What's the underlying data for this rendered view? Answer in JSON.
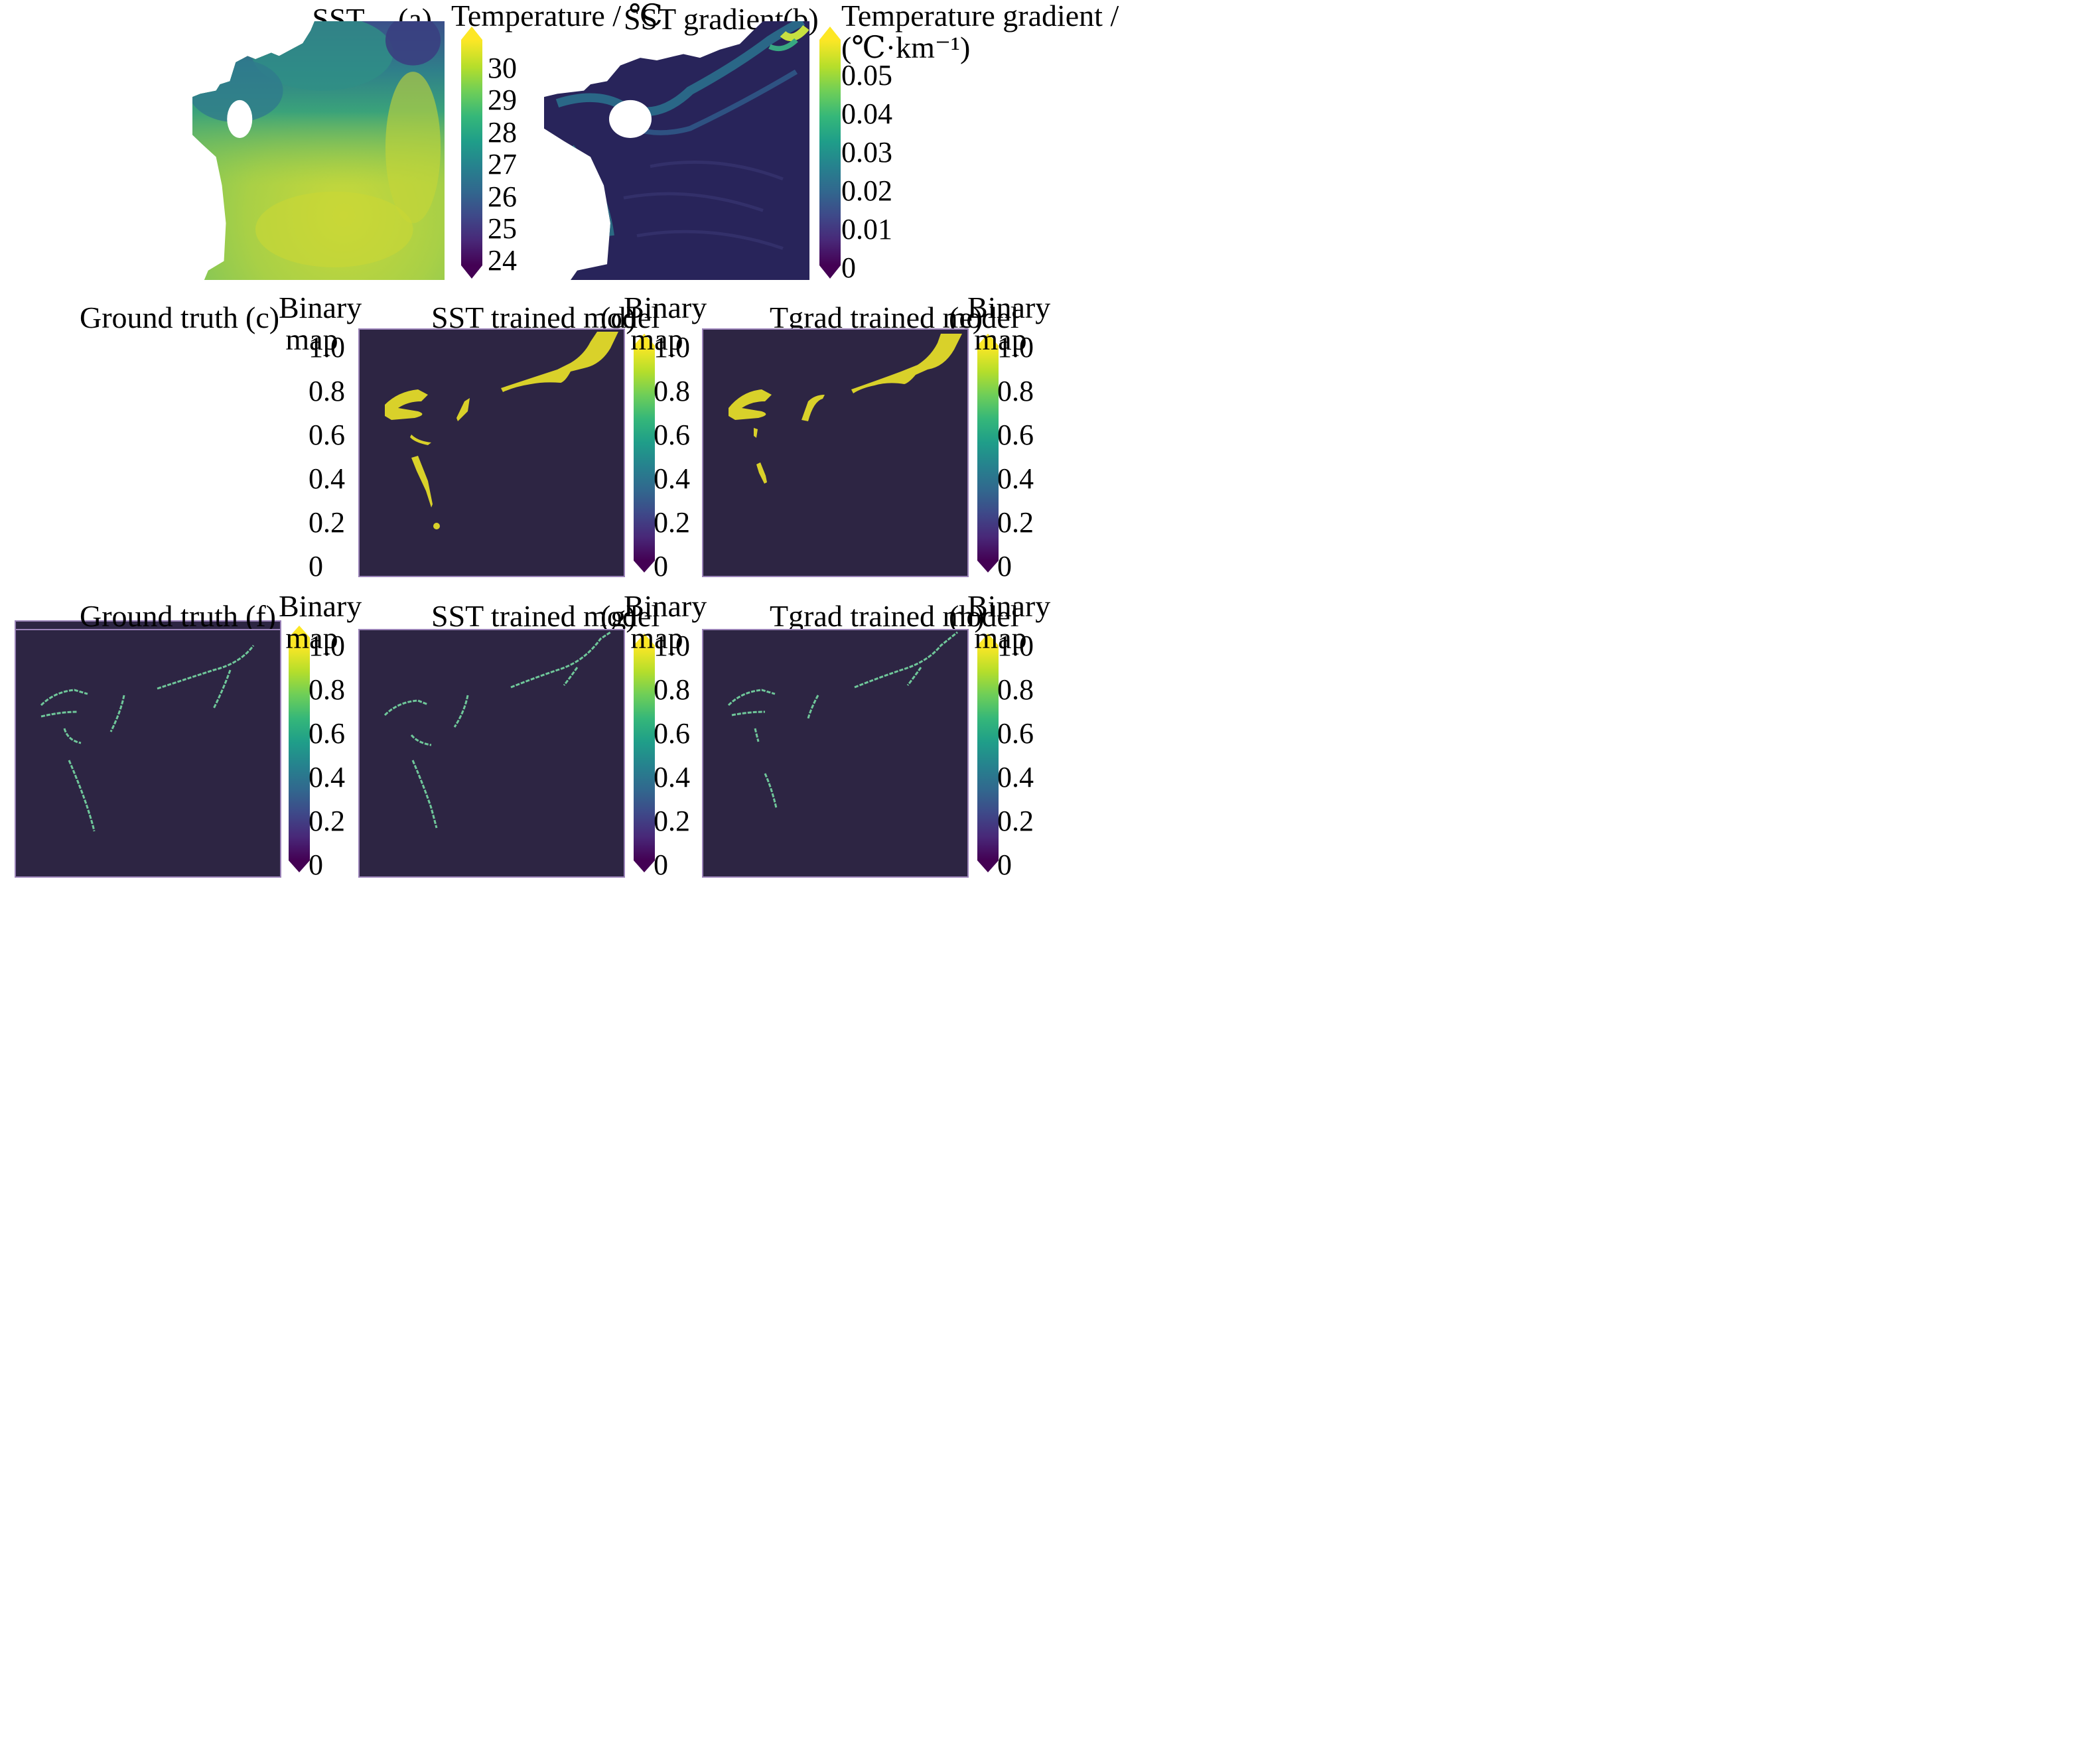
{
  "gradients": {
    "viridis": [
      "#440154",
      "#482878",
      "#3e4989",
      "#31688e",
      "#26828e",
      "#1f9e89",
      "#35b779",
      "#6ece58",
      "#b5de2b",
      "#fde725"
    ]
  },
  "colors": {
    "background": "#2d2543",
    "frame": "#9a82b8",
    "front": "#d9d12a",
    "line": "#6fc79a",
    "sst_cool": "#3b4f8a",
    "sst_mid": "#3aa27a",
    "sst_warm": "#b9d43c",
    "grad_low": "#28245a",
    "grad_high": "#c7e040"
  },
  "panels": {
    "a": {
      "title": "SST",
      "tag": "(a)",
      "colorbar_label": [
        "Temperature / ℃"
      ],
      "ticks": [
        "30",
        "29",
        "28",
        "27",
        "26",
        "25",
        "24"
      ]
    },
    "b": {
      "title": "SST gradient",
      "tag": "(b)",
      "colorbar_label": [
        "Temperature gradient /",
        "(℃·km⁻¹)"
      ],
      "ticks": [
        "0.05",
        "0.04",
        "0.03",
        "0.02",
        "0.01",
        "0"
      ]
    },
    "c": {
      "title": "Ground truth",
      "tag": "(c)",
      "colorbar_label": [
        "Binary",
        "map"
      ],
      "ticks": [
        "1.0",
        "0.8",
        "0.6",
        "0.4",
        "0.2",
        "0"
      ]
    },
    "d": {
      "title": "SST trained model",
      "tag": "(d)",
      "colorbar_label": [
        "Binary",
        "map"
      ],
      "ticks": [
        "1.0",
        "0.8",
        "0.6",
        "0.4",
        "0.2",
        "0"
      ]
    },
    "e": {
      "title": "Tgrad trained model",
      "tag": "(e)",
      "colorbar_label": [
        "Binary",
        "map"
      ],
      "ticks": [
        "1.0",
        "0.8",
        "0.6",
        "0.4",
        "0.2",
        "0"
      ]
    },
    "f": {
      "title": "Ground truth",
      "tag": "(f)",
      "colorbar_label": [
        "Binary",
        "map"
      ],
      "ticks": [
        "1.0",
        "0.8",
        "0.6",
        "0.4",
        "0.2",
        "0"
      ]
    },
    "g": {
      "title": "SST trained model",
      "tag": "(g)",
      "colorbar_label": [
        "Binary",
        "map"
      ],
      "ticks": [
        "1.0",
        "0.8",
        "0.6",
        "0.4",
        "0.2",
        "0"
      ]
    },
    "h": {
      "title": "Tgrad trained model",
      "tag": "(h)",
      "colorbar_label": [
        "Binary",
        "map"
      ],
      "ticks": [
        "1.0",
        "0.8",
        "0.6",
        "0.4",
        "0.2",
        "0"
      ]
    }
  },
  "chart_data": [
    {
      "panel": "a",
      "type": "heatmap",
      "title": "SST",
      "colorbar": {
        "label": "Temperature / ℃",
        "range": [
          23.7,
          31
        ],
        "ticks": [
          24,
          25,
          26,
          27,
          28,
          29,
          30
        ],
        "extend": "both",
        "cmap": "viridis"
      }
    },
    {
      "panel": "b",
      "type": "heatmap",
      "title": "SST gradient",
      "colorbar": {
        "label": "Temperature gradient / (℃·km⁻¹)",
        "range": [
          0,
          0.059
        ],
        "ticks": [
          0,
          0.01,
          0.02,
          0.03,
          0.04,
          0.05
        ],
        "extend": "both",
        "cmap": "viridis"
      }
    },
    {
      "panel": "c",
      "type": "heatmap",
      "title": "Ground truth",
      "colorbar": {
        "label": "Binary map",
        "range": [
          0,
          1
        ],
        "ticks": [
          0,
          0.2,
          0.4,
          0.6,
          0.8,
          1.0
        ],
        "extend": "both",
        "cmap": "viridis"
      }
    },
    {
      "panel": "d",
      "type": "heatmap",
      "title": "SST trained model",
      "colorbar": {
        "label": "Binary map",
        "range": [
          0,
          1
        ],
        "ticks": [
          0,
          0.2,
          0.4,
          0.6,
          0.8,
          1.0
        ],
        "extend": "both",
        "cmap": "viridis"
      }
    },
    {
      "panel": "e",
      "type": "heatmap",
      "title": "Tgrad trained model",
      "colorbar": {
        "label": "Binary map",
        "range": [
          0,
          1
        ],
        "ticks": [
          0,
          0.2,
          0.4,
          0.6,
          0.8,
          1.0
        ],
        "extend": "both",
        "cmap": "viridis"
      }
    },
    {
      "panel": "f",
      "type": "heatmap",
      "title": "Ground truth",
      "colorbar": {
        "label": "Binary map",
        "range": [
          0,
          1
        ],
        "ticks": [
          0,
          0.2,
          0.4,
          0.6,
          0.8,
          1.0
        ],
        "extend": "both",
        "cmap": "viridis"
      }
    },
    {
      "panel": "g",
      "type": "heatmap",
      "title": "SST trained model",
      "colorbar": {
        "label": "Binary map",
        "range": [
          0,
          1
        ],
        "ticks": [
          0,
          0.2,
          0.4,
          0.6,
          0.8,
          1.0
        ],
        "extend": "both",
        "cmap": "viridis"
      }
    },
    {
      "panel": "h",
      "type": "heatmap",
      "title": "Tgrad trained model",
      "colorbar": {
        "label": "Binary map",
        "range": [
          0,
          1
        ],
        "ticks": [
          0,
          0.2,
          0.4,
          0.6,
          0.8,
          1.0
        ],
        "extend": "both",
        "cmap": "viridis"
      }
    }
  ]
}
